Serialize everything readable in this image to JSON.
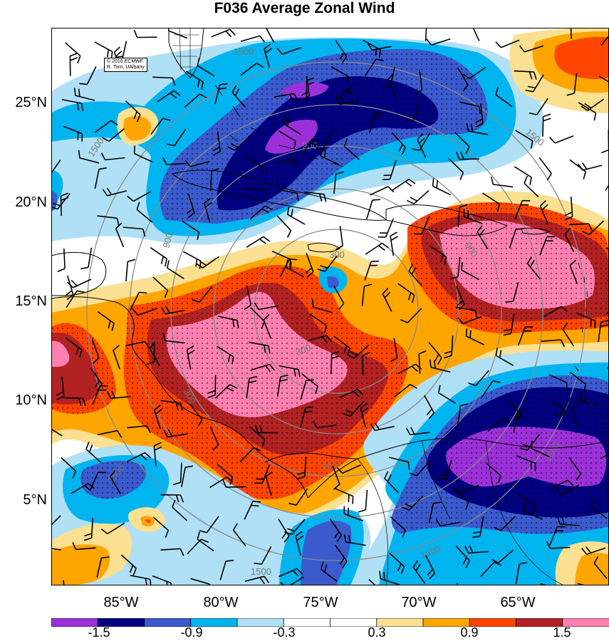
{
  "title": "F036 Average Zonal Wind",
  "credit": {
    "line1": "© 2016 ECMWF",
    "line2": "R. Torn, UAlbany"
  },
  "lat_labels": [
    "25°N",
    "20°N",
    "15°N",
    "10°N",
    "5°N"
  ],
  "lon_labels": [
    "85°W",
    "80°W",
    "75°W",
    "70°W",
    "65°W"
  ],
  "range_ring_labels": [
    "1500",
    "1500",
    "1500",
    "1500",
    "1500",
    "900",
    "900",
    "900",
    "900",
    "300",
    "300",
    "300",
    "1500",
    "1500"
  ],
  "colorbar": {
    "colors": [
      "#9b30d9",
      "#000080",
      "#3a5acd",
      "#00b4f0",
      "#b0e0f5",
      "#ffffff",
      "#ffffff",
      "#fae090",
      "#ffa500",
      "#ff4500",
      "#b22222",
      "#ff80b0"
    ],
    "labels": [
      "-1.5",
      "-0.9",
      "-0.3",
      "0.3",
      "0.9",
      "1.5"
    ]
  }
}
